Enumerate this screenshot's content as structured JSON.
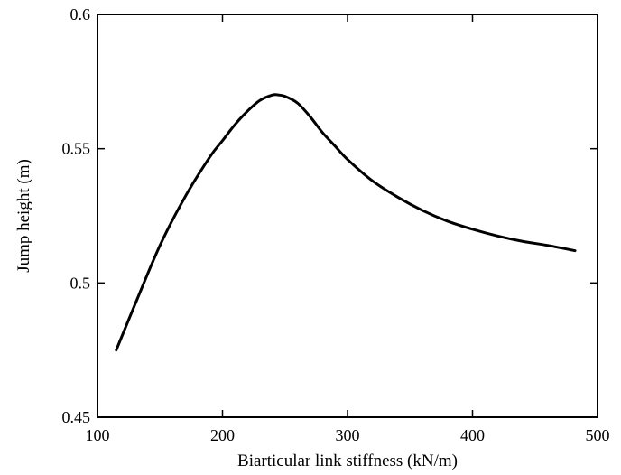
{
  "chart_data": {
    "type": "line",
    "title": "",
    "xlabel": "Biarticular link stiffness (kN/m)",
    "ylabel": "Jump height (m)",
    "xlim": [
      100,
      500
    ],
    "ylim": [
      0.45,
      0.6
    ],
    "x_ticks": [
      100,
      200,
      300,
      400,
      500
    ],
    "y_ticks": [
      0.45,
      0.5,
      0.55,
      0.6
    ],
    "x_tick_labels": [
      "100",
      "200",
      "300",
      "400",
      "500"
    ],
    "y_tick_labels": [
      "0.45",
      "0.5",
      "0.55",
      "0.6"
    ],
    "grid": false,
    "line_color": "#000000",
    "series": [
      {
        "x": [
          115,
          130,
          150,
          170,
          190,
          200,
          210,
          220,
          230,
          240,
          245,
          250,
          260,
          270,
          280,
          290,
          300,
          320,
          340,
          360,
          380,
          400,
          420,
          440,
          460,
          482
        ],
        "y": [
          0.475,
          0.492,
          0.514,
          0.532,
          0.547,
          0.553,
          0.559,
          0.564,
          0.568,
          0.57,
          0.57,
          0.5695,
          0.567,
          0.562,
          0.556,
          0.551,
          0.546,
          0.538,
          0.532,
          0.527,
          0.523,
          0.52,
          0.5175,
          0.5155,
          0.514,
          0.512
        ]
      }
    ]
  }
}
